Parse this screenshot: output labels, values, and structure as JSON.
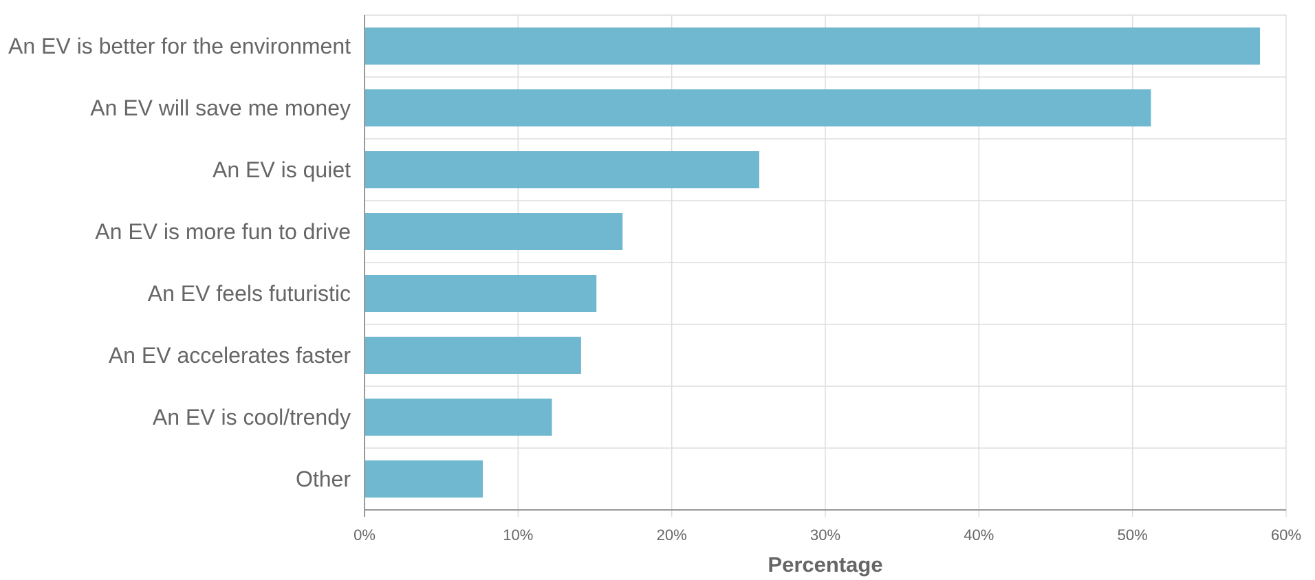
{
  "chart_data": {
    "type": "bar",
    "orientation": "horizontal",
    "categories": [
      "An EV is better for the environment",
      "An EV will save me money",
      "An EV is quiet",
      "An EV is more fun to drive",
      "An EV feels futuristic",
      "An EV accelerates faster",
      "An EV is cool/trendy",
      "Other"
    ],
    "values": [
      58.3,
      51.2,
      25.7,
      16.8,
      15.1,
      14.1,
      12.2,
      7.7
    ],
    "xlabel": "Percentage",
    "ylabel": "",
    "xlim": [
      0,
      60
    ],
    "x_ticks": [
      0,
      10,
      20,
      30,
      40,
      50,
      60
    ],
    "x_tick_labels": [
      "0%",
      "10%",
      "20%",
      "30%",
      "40%",
      "50%",
      "60%"
    ],
    "grid": true,
    "legend": "none",
    "colors": {
      "bar": "#70b8cf",
      "grid": "#dddddd",
      "axis": "#999999",
      "text": "#666666"
    }
  }
}
